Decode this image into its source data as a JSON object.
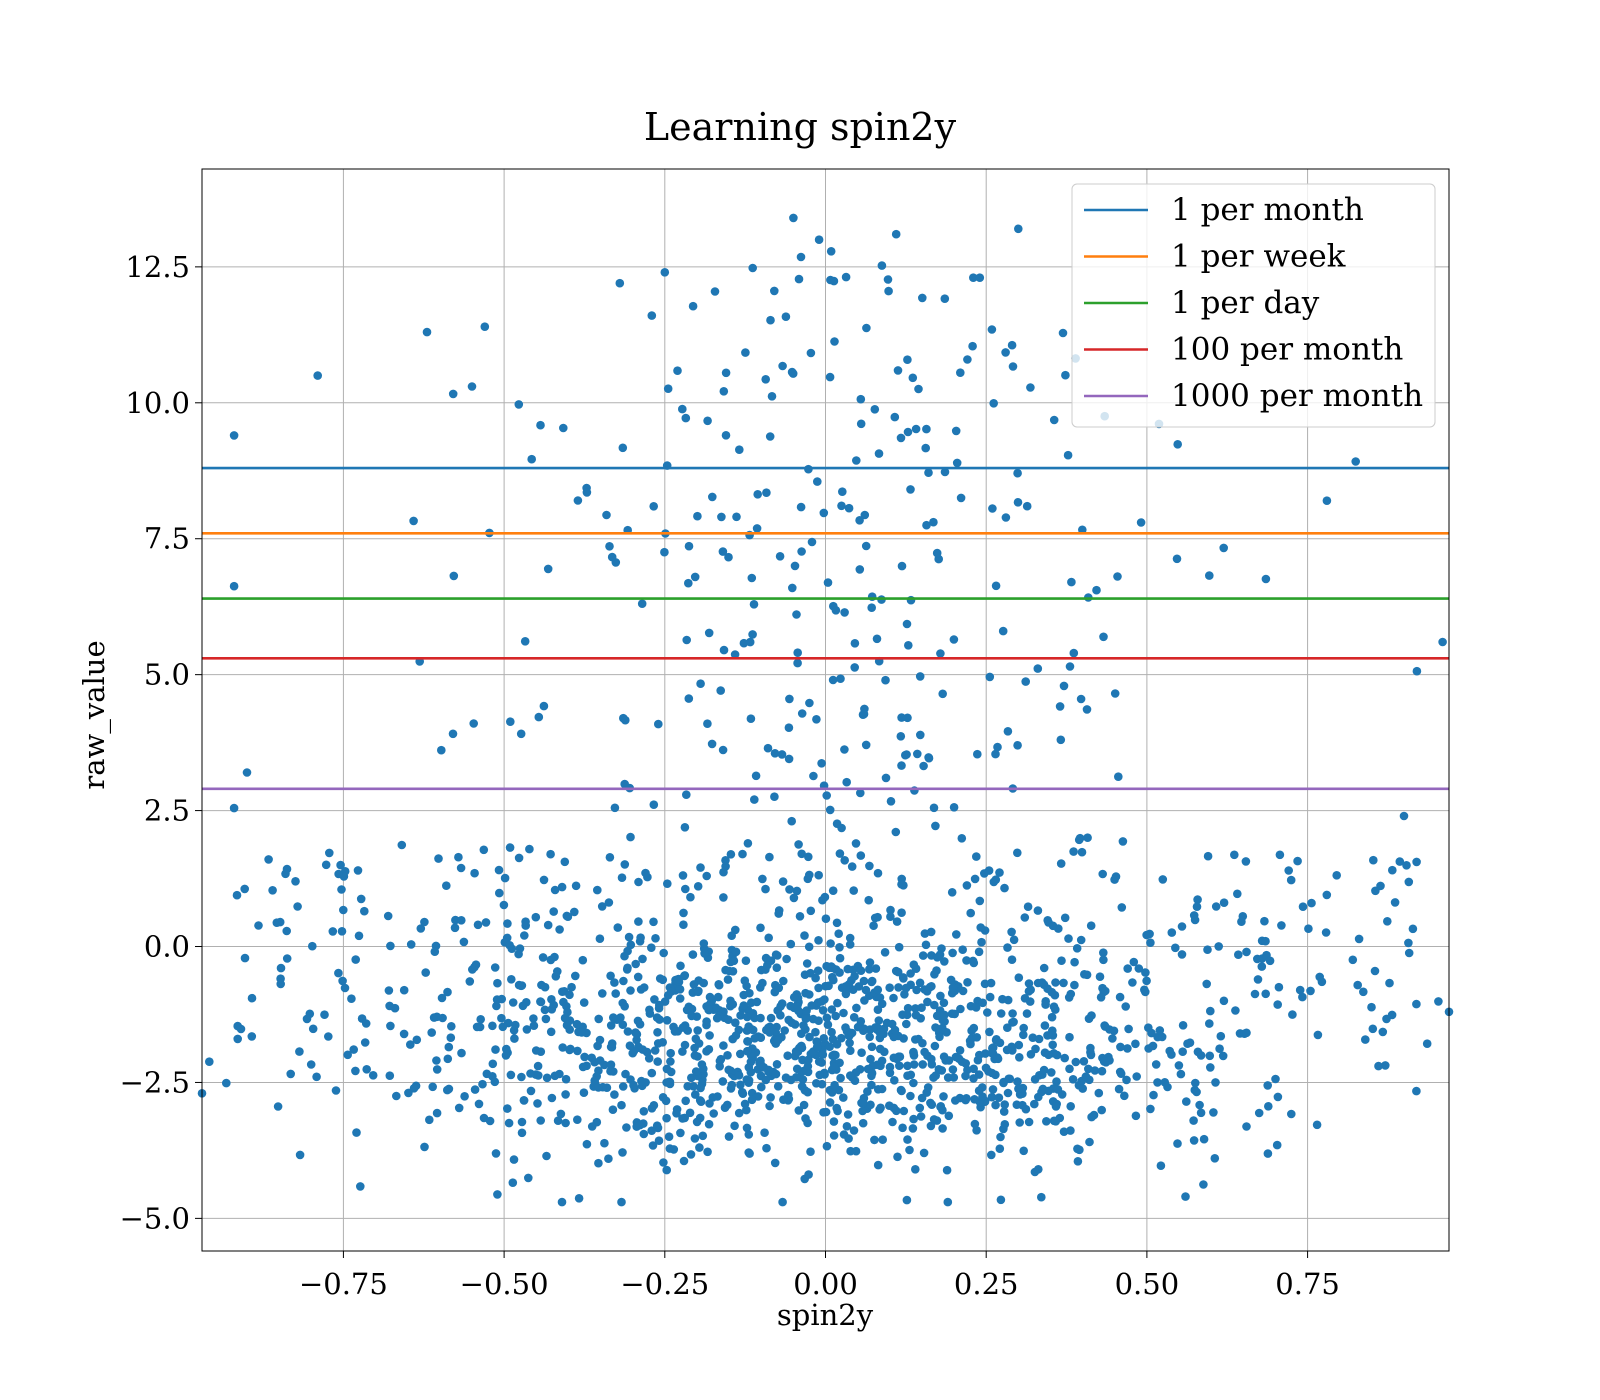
{
  "chart_data": {
    "type": "scatter",
    "title": "Learning spin2y",
    "xlabel": "spin2y",
    "ylabel": "raw_value",
    "xlim": [
      -0.97,
      0.97
    ],
    "ylim": [
      -5.6,
      14.3
    ],
    "x_ticks": [
      -0.75,
      -0.5,
      -0.25,
      0.0,
      0.25,
      0.5,
      0.75
    ],
    "x_tick_labels": [
      "−0.75",
      "−0.50",
      "−0.25",
      "0.00",
      "0.25",
      "0.50",
      "0.75"
    ],
    "y_ticks": [
      -5.0,
      -2.5,
      0.0,
      2.5,
      5.0,
      7.5,
      10.0,
      12.5
    ],
    "y_tick_labels": [
      "−5.0",
      "−2.5",
      "0.0",
      "2.5",
      "5.0",
      "7.5",
      "10.0",
      "12.5"
    ],
    "grid": true,
    "legend_position": "top-right",
    "scatter_color": "#1f77b4",
    "scatter_point_count": 1800,
    "scatter_points_sample": [
      {
        "x": -0.92,
        "y": 9.4
      },
      {
        "x": -0.9,
        "y": 3.2
      },
      {
        "x": -0.79,
        "y": 10.5
      },
      {
        "x": -0.62,
        "y": 11.3
      },
      {
        "x": -0.55,
        "y": 10.3
      },
      {
        "x": -0.53,
        "y": 11.4
      },
      {
        "x": -0.32,
        "y": 12.2
      },
      {
        "x": -0.25,
        "y": 12.4
      },
      {
        "x": -0.05,
        "y": 13.4
      },
      {
        "x": -0.01,
        "y": 13.0
      },
      {
        "x": 0.11,
        "y": 13.1
      },
      {
        "x": 0.3,
        "y": 13.2
      },
      {
        "x": 0.23,
        "y": 12.3
      },
      {
        "x": 0.24,
        "y": 12.3
      },
      {
        "x": 0.78,
        "y": 8.2
      },
      {
        "x": 0.96,
        "y": 5.6
      },
      {
        "x": -0.41,
        "y": -4.7
      },
      {
        "x": 0.56,
        "y": -4.6
      },
      {
        "x": 0.9,
        "y": 2.4
      },
      {
        "x": 0.97,
        "y": -1.2
      },
      {
        "x": -0.97,
        "y": -2.7
      }
    ],
    "series": [
      {
        "name": "1 per month",
        "y": 8.8,
        "color": "#1f77b4"
      },
      {
        "name": "1 per week",
        "y": 7.6,
        "color": "#ff7f0e"
      },
      {
        "name": "1 per day",
        "y": 6.4,
        "color": "#2ca02c"
      },
      {
        "name": "100 per month",
        "y": 5.3,
        "color": "#d62728"
      },
      {
        "name": "1000 per month",
        "y": 2.9,
        "color": "#9467bd"
      }
    ]
  }
}
